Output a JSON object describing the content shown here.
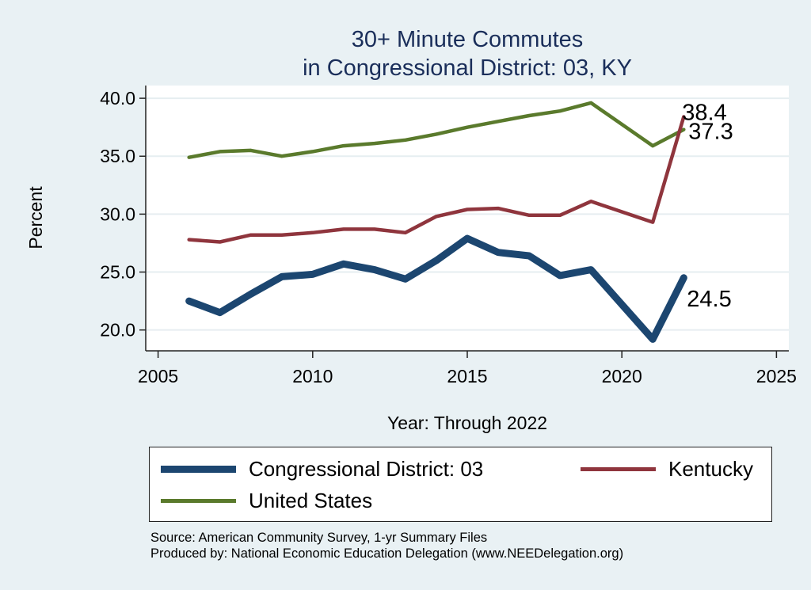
{
  "chart_data": {
    "type": "line",
    "title": [
      "30+ Minute Commutes",
      "in Congressional District:  03, KY"
    ],
    "xlabel": "Year: Through 2022",
    "ylabel": "Percent",
    "xlim": [
      2004.6,
      2025.4
    ],
    "ylim": [
      18.2,
      41.1
    ],
    "xticks": [
      2005,
      2010,
      2015,
      2020,
      2025
    ],
    "xtick_labels": [
      "2005",
      "2010",
      "2015",
      "2020",
      "2025"
    ],
    "yticks": [
      20,
      25,
      30,
      35,
      40
    ],
    "ytick_labels": [
      "20.0",
      "25.0",
      "30.0",
      "35.0",
      "40.0"
    ],
    "grid": true,
    "x": [
      2006,
      2007,
      2008,
      2009,
      2010,
      2011,
      2012,
      2013,
      2014,
      2015,
      2016,
      2017,
      2018,
      2019,
      2021,
      2022
    ],
    "series": [
      {
        "name": "Congressional District:  03",
        "color": "#1c4670",
        "width": "thick",
        "values": [
          22.5,
          21.5,
          23.1,
          24.6,
          24.8,
          25.7,
          25.2,
          24.4,
          26.0,
          27.9,
          26.7,
          26.4,
          24.7,
          25.2,
          19.2,
          24.5
        ],
        "end_label": "24.5"
      },
      {
        "name": "Kentucky",
        "color": "#8f353d",
        "width": "medium",
        "values": [
          27.8,
          27.6,
          28.2,
          28.2,
          28.4,
          28.7,
          28.7,
          28.4,
          29.8,
          30.4,
          30.5,
          29.9,
          29.9,
          31.1,
          29.3,
          38.4
        ],
        "end_label": "38.4"
      },
      {
        "name": "United States",
        "color": "#5a7a2c",
        "width": "medium",
        "values": [
          34.9,
          35.4,
          35.5,
          35.0,
          35.4,
          35.9,
          36.1,
          36.4,
          36.9,
          37.5,
          38.0,
          38.5,
          38.9,
          39.6,
          35.9,
          37.3
        ],
        "end_label": "37.3"
      }
    ],
    "legend": {
      "position": "bottom",
      "columns": 2
    }
  },
  "legend": {
    "items": [
      "Congressional District:  03",
      "Kentucky",
      "United States"
    ]
  },
  "notes": {
    "source": "Source: American Community Survey, 1-yr Summary Files",
    "produced_by": "Produced by: National Economic Education Delegation (www.NEEDelegation.org)"
  }
}
